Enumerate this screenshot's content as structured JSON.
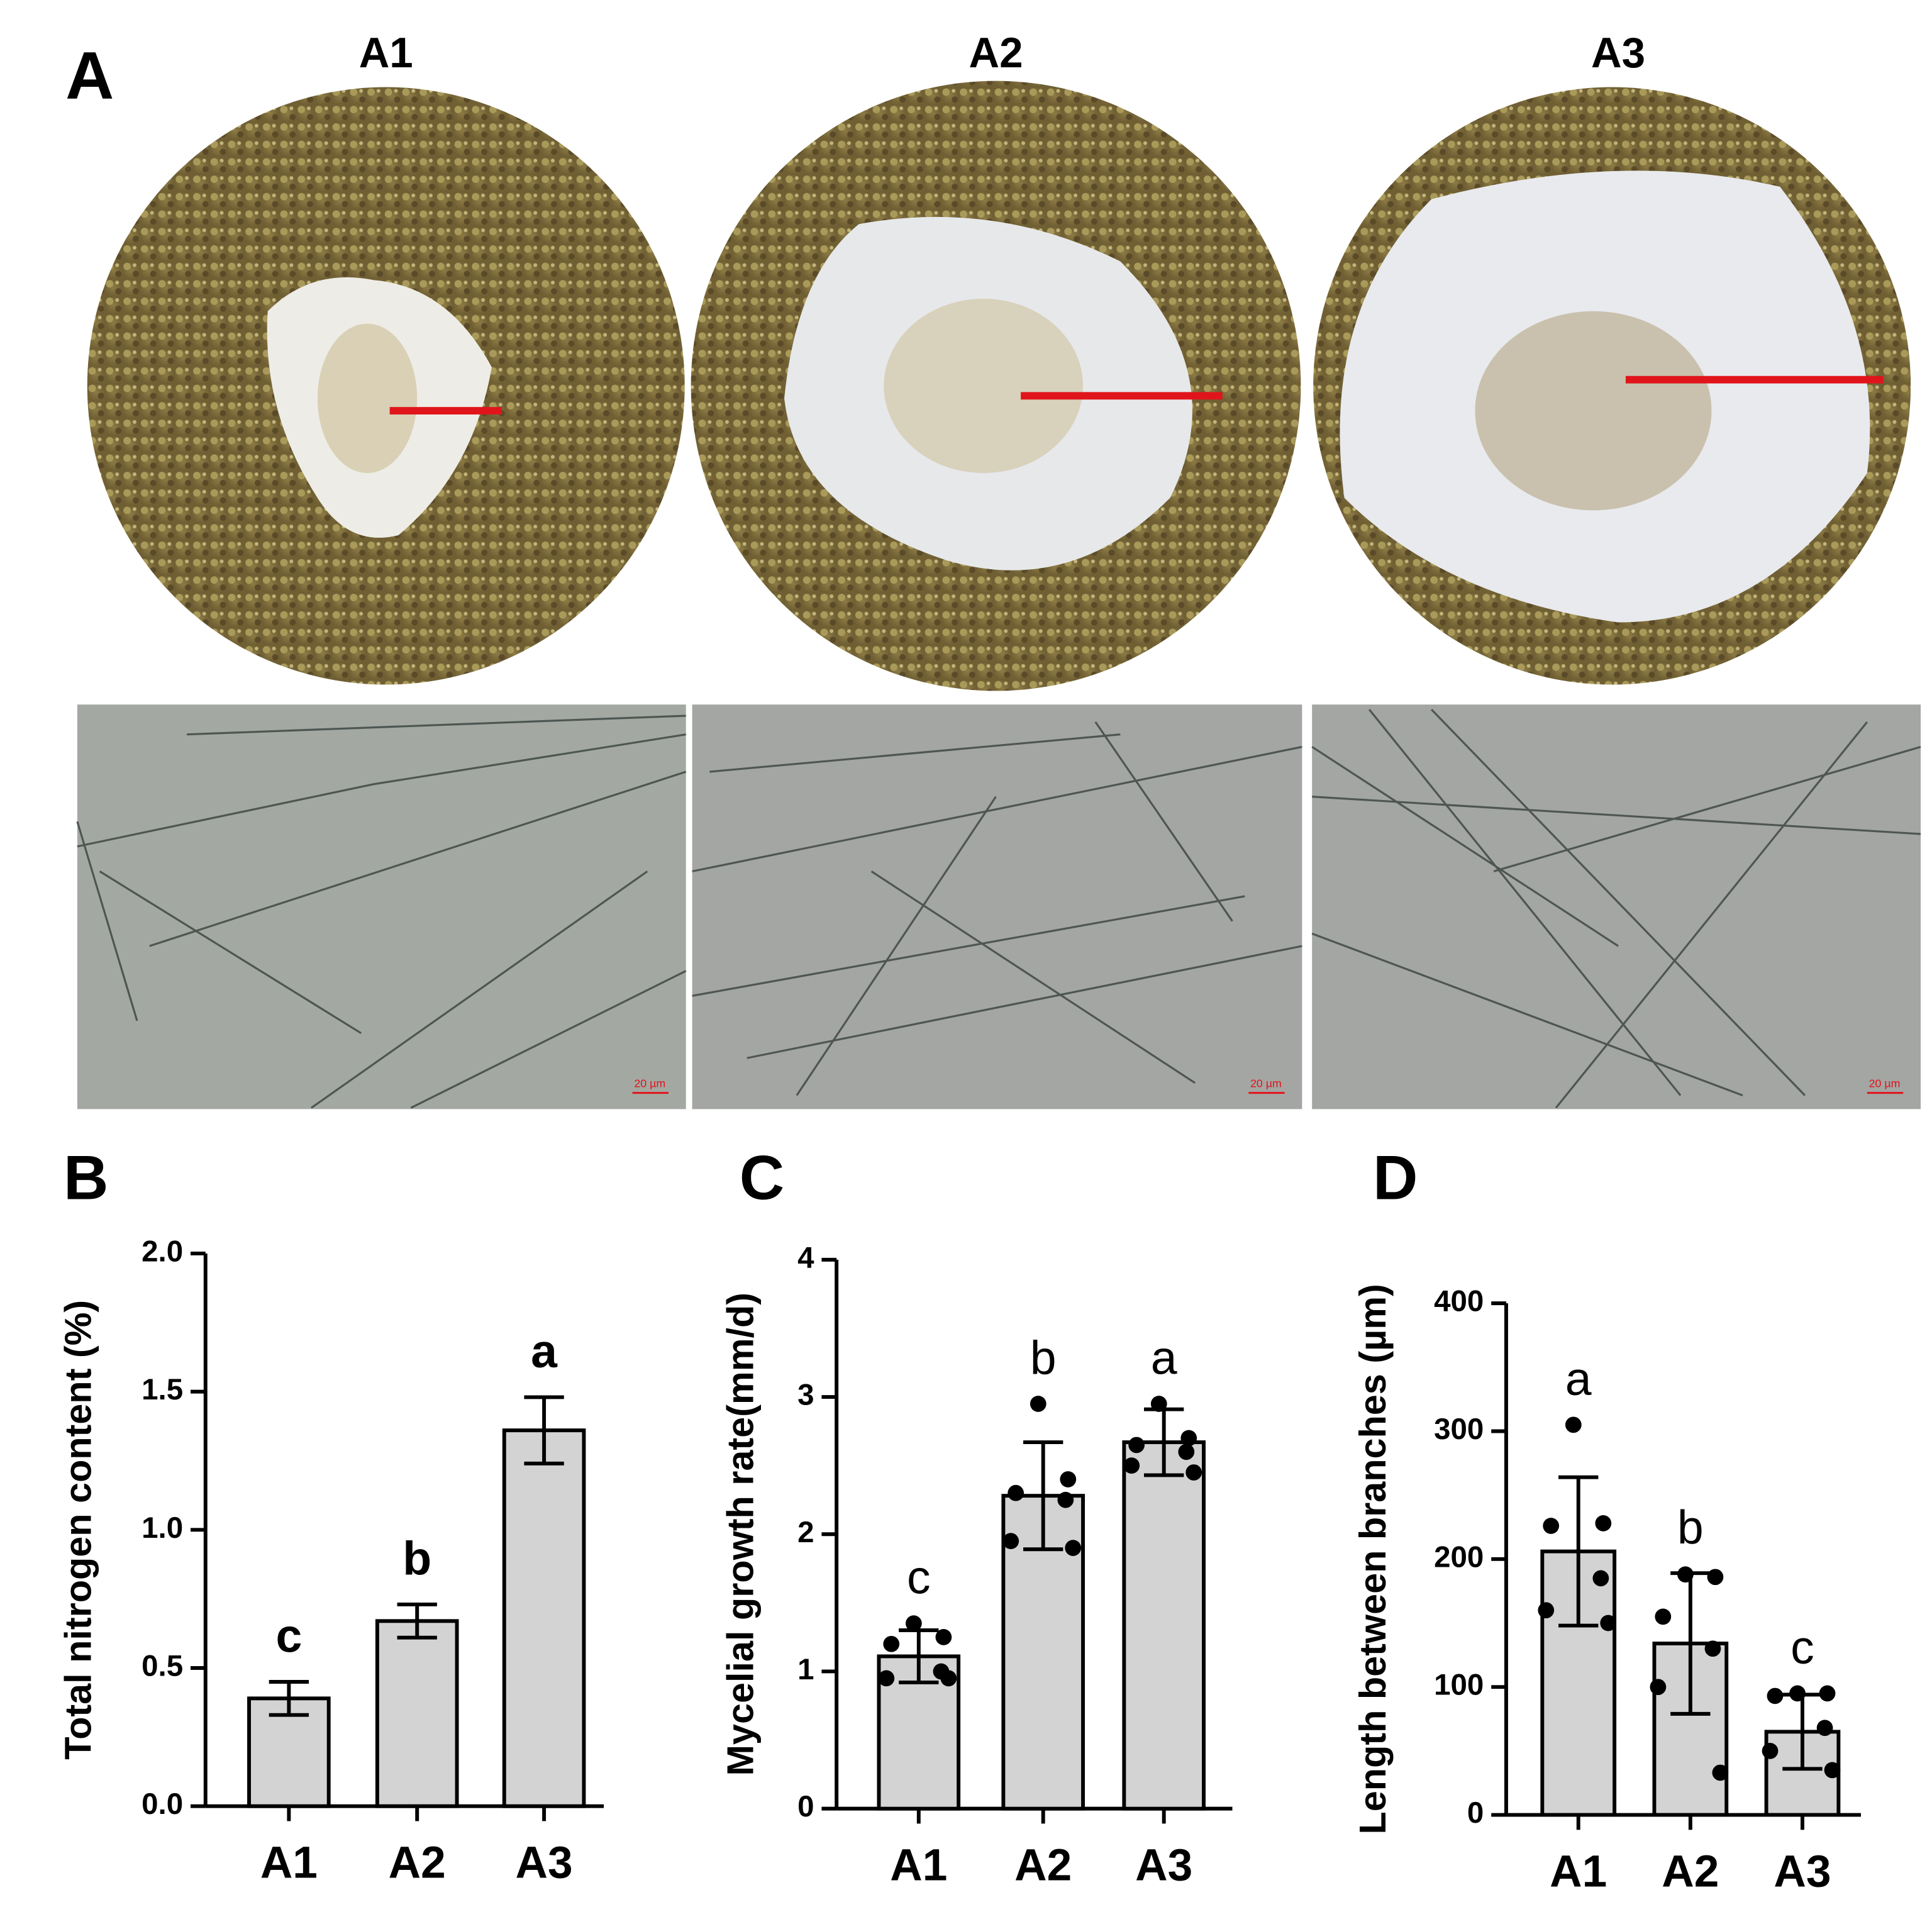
{
  "panel_a": {
    "label": "A",
    "titles": [
      "A1",
      "A2",
      "A3"
    ],
    "scale_bars": [
      "20 µm",
      "20 µm",
      "20 µm"
    ]
  },
  "chart_data": [
    {
      "type": "bar",
      "panel_label": "B",
      "ylabel": "Total nitrogen content (%)",
      "categories": [
        "A1",
        "A2",
        "A3"
      ],
      "values": [
        0.39,
        0.67,
        1.36
      ],
      "errors": [
        0.06,
        0.06,
        0.12
      ],
      "annotations": [
        "c",
        "b",
        "a"
      ],
      "color": "#d3d3d3",
      "ylim": [
        0,
        2
      ],
      "yticks": [
        {
          "value": 0,
          "label": "0.0"
        },
        0.5,
        {
          "value": 1,
          "label": "1.0"
        },
        1.5,
        {
          "value": 2,
          "label": "2.0"
        }
      ]
    },
    {
      "type": "bar",
      "panel_label": "C",
      "ylabel": "Mycelial growth rate(mm/d)",
      "categories": [
        "A1",
        "A2",
        "A3"
      ],
      "values": [
        1.11,
        2.28,
        2.67
      ],
      "errors": [
        0.19,
        0.39,
        0.24
      ],
      "annotations": [
        "c",
        "b",
        "a"
      ],
      "color": "#d3d3d3",
      "points": [
        [
          1.35,
          1.25,
          1.2,
          1.0,
          0.95,
          0.95
        ],
        [
          2.95,
          2.4,
          2.3,
          2.25,
          1.95,
          1.9
        ],
        [
          2.95,
          2.7,
          2.65,
          2.6,
          2.5,
          2.45
        ]
      ],
      "ylim": [
        0,
        4
      ],
      "yticks": [
        0,
        1,
        2,
        3,
        4
      ]
    },
    {
      "type": "bar",
      "panel_label": "D",
      "ylabel": "Length between  branches (µm)",
      "categories": [
        "A1",
        "A2",
        "A3"
      ],
      "values": [
        206,
        134,
        65
      ],
      "errors": [
        58,
        55,
        29
      ],
      "annotations": [
        "a",
        "b",
        "c"
      ],
      "color": "#d3d3d3",
      "points": [
        [
          305,
          228,
          226,
          185,
          160,
          150
        ],
        [
          188,
          186,
          155,
          130,
          100,
          33
        ],
        [
          95,
          95,
          93,
          68,
          50,
          35
        ]
      ],
      "ylim": [
        0,
        400
      ],
      "yticks": [
        0,
        100,
        200,
        300,
        400
      ]
    }
  ]
}
